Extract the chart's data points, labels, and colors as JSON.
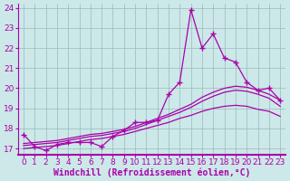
{
  "xlabel": "Windchill (Refroidissement éolien,°C)",
  "xlim": [
    -0.5,
    23.5
  ],
  "ylim": [
    16.7,
    24.2
  ],
  "yticks": [
    17,
    18,
    19,
    20,
    21,
    22,
    23,
    24
  ],
  "xticks": [
    0,
    1,
    2,
    3,
    4,
    5,
    6,
    7,
    8,
    9,
    10,
    11,
    12,
    13,
    14,
    15,
    16,
    17,
    18,
    19,
    20,
    21,
    22,
    23
  ],
  "main_x": [
    0,
    1,
    2,
    3,
    4,
    5,
    6,
    7,
    8,
    9,
    10,
    11,
    12,
    13,
    14,
    15,
    16,
    17,
    18,
    19,
    20,
    21,
    22,
    23
  ],
  "main_y": [
    17.7,
    17.1,
    16.9,
    17.2,
    17.3,
    17.3,
    17.3,
    17.1,
    17.6,
    17.9,
    18.3,
    18.3,
    18.4,
    19.7,
    20.3,
    23.9,
    22.0,
    22.7,
    21.5,
    21.3,
    20.3,
    19.9,
    20.0,
    19.4
  ],
  "smooth1_x": [
    0,
    1,
    2,
    3,
    4,
    5,
    6,
    7,
    8,
    9,
    10,
    11,
    12,
    13,
    14,
    15,
    16,
    17,
    18,
    19,
    20,
    21,
    22,
    23
  ],
  "smooth1_y": [
    17.25,
    17.3,
    17.35,
    17.4,
    17.5,
    17.6,
    17.7,
    17.75,
    17.85,
    17.95,
    18.1,
    18.3,
    18.5,
    18.7,
    18.95,
    19.2,
    19.55,
    19.8,
    20.0,
    20.1,
    20.05,
    19.9,
    19.7,
    19.4
  ],
  "smooth2_x": [
    0,
    1,
    2,
    3,
    4,
    5,
    6,
    7,
    8,
    9,
    10,
    11,
    12,
    13,
    14,
    15,
    16,
    17,
    18,
    19,
    20,
    21,
    22,
    23
  ],
  "smooth2_y": [
    17.15,
    17.2,
    17.25,
    17.3,
    17.4,
    17.5,
    17.6,
    17.65,
    17.75,
    17.85,
    18.0,
    18.2,
    18.4,
    18.6,
    18.8,
    19.05,
    19.35,
    19.6,
    19.8,
    19.9,
    19.85,
    19.7,
    19.5,
    19.1
  ],
  "smooth3_x": [
    0,
    1,
    2,
    3,
    4,
    5,
    6,
    7,
    8,
    9,
    10,
    11,
    12,
    13,
    14,
    15,
    16,
    17,
    18,
    19,
    20,
    21,
    22,
    23
  ],
  "smooth3_y": [
    17.0,
    17.05,
    17.1,
    17.15,
    17.25,
    17.35,
    17.45,
    17.5,
    17.6,
    17.7,
    17.85,
    18.0,
    18.15,
    18.3,
    18.5,
    18.65,
    18.85,
    19.0,
    19.1,
    19.15,
    19.1,
    18.95,
    18.85,
    18.6
  ],
  "line_color": "#aa00aa",
  "bg_color": "#cce8e8",
  "grid_color": "#99bbbb",
  "label_color": "#aa00aa",
  "tick_label_color": "#aa00aa",
  "xlabel_fontsize": 7,
  "tick_fontsize": 6.5
}
